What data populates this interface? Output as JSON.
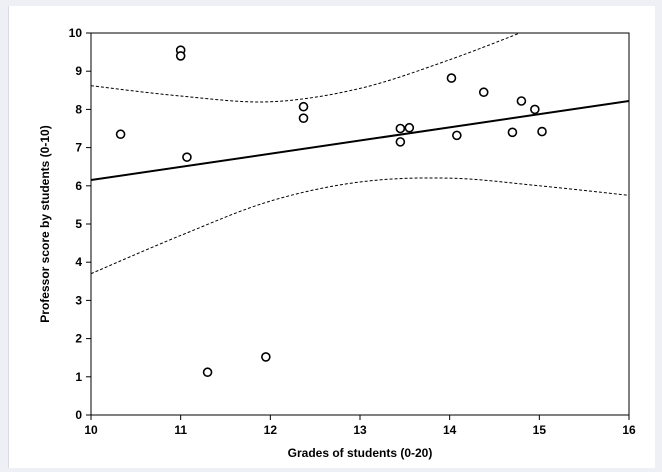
{
  "chart_data": {
    "type": "scatter",
    "title": "",
    "xlabel": "Grades of students (0-20)",
    "ylabel": "Professor score by students (0-10)",
    "xlim": [
      10,
      16
    ],
    "ylim": [
      0,
      10
    ],
    "xticks": [
      10,
      11,
      12,
      13,
      14,
      15,
      16
    ],
    "yticks": [
      0,
      1,
      2,
      3,
      4,
      5,
      6,
      7,
      8,
      9,
      10
    ],
    "grid": false,
    "points": [
      {
        "x": 10.33,
        "y": 7.35
      },
      {
        "x": 11.0,
        "y": 9.55
      },
      {
        "x": 11.0,
        "y": 9.4
      },
      {
        "x": 11.07,
        "y": 6.75
      },
      {
        "x": 11.3,
        "y": 1.12
      },
      {
        "x": 11.95,
        "y": 1.52
      },
      {
        "x": 12.37,
        "y": 8.07
      },
      {
        "x": 12.37,
        "y": 7.77
      },
      {
        "x": 13.45,
        "y": 7.5
      },
      {
        "x": 13.45,
        "y": 7.15
      },
      {
        "x": 13.55,
        "y": 7.52
      },
      {
        "x": 14.02,
        "y": 8.82
      },
      {
        "x": 14.08,
        "y": 7.32
      },
      {
        "x": 14.38,
        "y": 8.45
      },
      {
        "x": 14.7,
        "y": 7.4
      },
      {
        "x": 14.8,
        "y": 8.22
      },
      {
        "x": 14.95,
        "y": 8.0
      },
      {
        "x": 15.03,
        "y": 7.42
      }
    ],
    "regression_line": [
      [
        10,
        6.15
      ],
      [
        16,
        8.22
      ]
    ],
    "confidence_upper": [
      [
        10,
        8.62
      ],
      [
        11,
        8.35
      ],
      [
        12,
        8.2
      ],
      [
        13,
        8.55
      ],
      [
        14,
        9.3
      ],
      [
        15,
        10.2
      ]
    ],
    "confidence_lower": [
      [
        10,
        3.7
      ],
      [
        11,
        4.7
      ],
      [
        12,
        5.6
      ],
      [
        13,
        6.1
      ],
      [
        14,
        6.2
      ],
      [
        15,
        6.0
      ],
      [
        16,
        5.75
      ]
    ]
  }
}
